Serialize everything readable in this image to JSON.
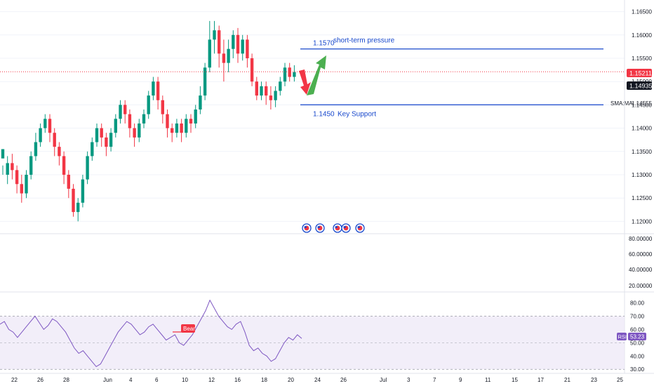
{
  "chart_data": {
    "type": "candlestick",
    "price_axis": {
      "ticks": [
        "1.16500",
        "1.16000",
        "1.15500",
        "1.15000",
        "1.14500",
        "1.14000",
        "1.13500",
        "1.13000",
        "1.12500",
        "1.12000"
      ],
      "range": [
        1.1175,
        1.1675
      ]
    },
    "date_axis": {
      "labels": [
        "22",
        "26",
        "28",
        "Jun",
        "4",
        "6",
        "10",
        "12",
        "16",
        "18",
        "20",
        "24",
        "26",
        "Jul",
        "3",
        "7",
        "9",
        "11",
        "15",
        "17",
        "21",
        "23",
        "25"
      ]
    },
    "current_price": {
      "label": "1.15211",
      "value": 1.15211,
      "color": "#f23645"
    },
    "price_tags": [
      {
        "label": "1.14935",
        "value": 1.14935,
        "color": "#131722"
      },
      {
        "label": "1.14555",
        "value": 1.14555,
        "indicator": "SMA:MA"
      }
    ],
    "annotations": [
      {
        "type": "hline",
        "value": 1.157,
        "price_text": "1.1570",
        "text": "short-term pressure",
        "color": "#1848cc"
      },
      {
        "type": "hline",
        "value": 1.145,
        "price_text": "1.1450",
        "text": "Key Support",
        "color": "#1848cc"
      },
      {
        "type": "arrow",
        "direction": "down",
        "color": "#f23645"
      },
      {
        "type": "arrow",
        "direction": "up",
        "color": "#4caf50"
      }
    ],
    "candles_approx": [
      [
        1.1335,
        1.1355,
        1.132,
        1.13
      ],
      [
        1.13,
        1.1325,
        1.134,
        1.128
      ],
      [
        1.1325,
        1.131,
        1.1345,
        1.129
      ],
      [
        1.131,
        1.128,
        1.132,
        1.126
      ],
      [
        1.128,
        1.126,
        1.13,
        1.124
      ],
      [
        1.126,
        1.13,
        1.131,
        1.125
      ],
      [
        1.13,
        1.134,
        1.135,
        1.129
      ],
      [
        1.134,
        1.137,
        1.139,
        1.133
      ],
      [
        1.137,
        1.14,
        1.141,
        1.136
      ],
      [
        1.14,
        1.142,
        1.143,
        1.139
      ],
      [
        1.142,
        1.139,
        1.143,
        1.137
      ],
      [
        1.139,
        1.136,
        1.14,
        1.134
      ],
      [
        1.136,
        1.134,
        1.137,
        1.132
      ],
      [
        1.134,
        1.13,
        1.135,
        1.128
      ],
      [
        1.13,
        1.127,
        1.131,
        1.125
      ],
      [
        1.127,
        1.122,
        1.128,
        1.121
      ],
      [
        1.122,
        1.124,
        1.125,
        1.12
      ],
      [
        1.124,
        1.129,
        1.13,
        1.123
      ],
      [
        1.129,
        1.134,
        1.135,
        1.128
      ],
      [
        1.134,
        1.137,
        1.138,
        1.133
      ],
      [
        1.137,
        1.14,
        1.141,
        1.136
      ],
      [
        1.14,
        1.138,
        1.141,
        1.136
      ],
      [
        1.138,
        1.136,
        1.139,
        1.134
      ],
      [
        1.136,
        1.139,
        1.14,
        1.135
      ],
      [
        1.139,
        1.142,
        1.143,
        1.138
      ],
      [
        1.142,
        1.145,
        1.146,
        1.141
      ],
      [
        1.145,
        1.143,
        1.146,
        1.141
      ],
      [
        1.143,
        1.14,
        1.144,
        1.138
      ],
      [
        1.14,
        1.138,
        1.141,
        1.136
      ],
      [
        1.138,
        1.141,
        1.142,
        1.137
      ],
      [
        1.141,
        1.143,
        1.144,
        1.14
      ],
      [
        1.143,
        1.147,
        1.148,
        1.142
      ],
      [
        1.147,
        1.15,
        1.151,
        1.146
      ],
      [
        1.15,
        1.146,
        1.151,
        1.144
      ],
      [
        1.146,
        1.143,
        1.147,
        1.141
      ],
      [
        1.143,
        1.14,
        1.144,
        1.138
      ],
      [
        1.14,
        1.139,
        1.141,
        1.137
      ],
      [
        1.139,
        1.141,
        1.142,
        1.138
      ],
      [
        1.141,
        1.139,
        1.142,
        1.137
      ],
      [
        1.139,
        1.142,
        1.143,
        1.138
      ],
      [
        1.142,
        1.141,
        1.143,
        1.139
      ],
      [
        1.141,
        1.144,
        1.145,
        1.14
      ],
      [
        1.144,
        1.147,
        1.149,
        1.143
      ],
      [
        1.147,
        1.153,
        1.154,
        1.146
      ],
      [
        1.153,
        1.159,
        1.163,
        1.152
      ],
      [
        1.159,
        1.161,
        1.163,
        1.156
      ],
      [
        1.161,
        1.156,
        1.162,
        1.153
      ],
      [
        1.156,
        1.154,
        1.159,
        1.15
      ],
      [
        1.154,
        1.157,
        1.159,
        1.152
      ],
      [
        1.157,
        1.16,
        1.161,
        1.155
      ],
      [
        1.16,
        1.156,
        1.1615,
        1.154
      ],
      [
        1.156,
        1.159,
        1.16,
        1.1545
      ],
      [
        1.159,
        1.155,
        1.16,
        1.153
      ],
      [
        1.155,
        1.15,
        1.156,
        1.149
      ],
      [
        1.15,
        1.147,
        1.151,
        1.146
      ],
      [
        1.147,
        1.149,
        1.15,
        1.146
      ],
      [
        1.149,
        1.147,
        1.15,
        1.145
      ],
      [
        1.147,
        1.146,
        1.149,
        1.144
      ],
      [
        1.146,
        1.148,
        1.149,
        1.1445
      ],
      [
        1.148,
        1.15,
        1.151,
        1.147
      ],
      [
        1.15,
        1.153,
        1.154,
        1.149
      ],
      [
        1.153,
        1.151,
        1.154,
        1.15
      ],
      [
        1.151,
        1.152,
        1.1535,
        1.15
      ]
    ]
  },
  "rsi_pane": {
    "indicator_label": "RSI",
    "value_label": "53.23",
    "value": 53.23,
    "ticks": [
      "80.00",
      "70.00",
      "60.00",
      "50.00",
      "40.00",
      "30.00"
    ],
    "range": [
      28,
      84
    ],
    "band": [
      30,
      70
    ],
    "signal_label": "Bear",
    "values_approx": [
      64,
      66,
      60,
      58,
      54,
      58,
      62,
      66,
      70,
      65,
      60,
      63,
      68,
      66,
      62,
      58,
      52,
      46,
      42,
      44,
      40,
      36,
      32,
      34,
      40,
      46,
      52,
      58,
      62,
      66,
      64,
      60,
      56,
      58,
      62,
      64,
      60,
      56,
      52,
      54,
      56,
      50,
      48,
      52,
      56,
      62,
      68,
      74,
      82,
      76,
      70,
      66,
      62,
      60,
      64,
      66,
      58,
      48,
      44,
      46,
      42,
      40,
      36,
      38,
      44,
      50,
      54,
      52,
      56,
      53.23
    ]
  },
  "secondary_pane": {
    "ticks": [
      "80.00000",
      "60.00000",
      "40.00000",
      "20.00000"
    ]
  },
  "event_markers": [
    "flag-icon",
    "flag-icon",
    "flag-icon",
    "flag-icon",
    "flag-icon",
    "flag-icon"
  ],
  "colors": {
    "bull": "#089981",
    "bear": "#f23645",
    "grid": "#f0f3fa",
    "axis_text": "#131722",
    "line_blue": "#1848cc",
    "rsi_line": "#7e57c2",
    "rsi_band": "#ede7f6"
  }
}
